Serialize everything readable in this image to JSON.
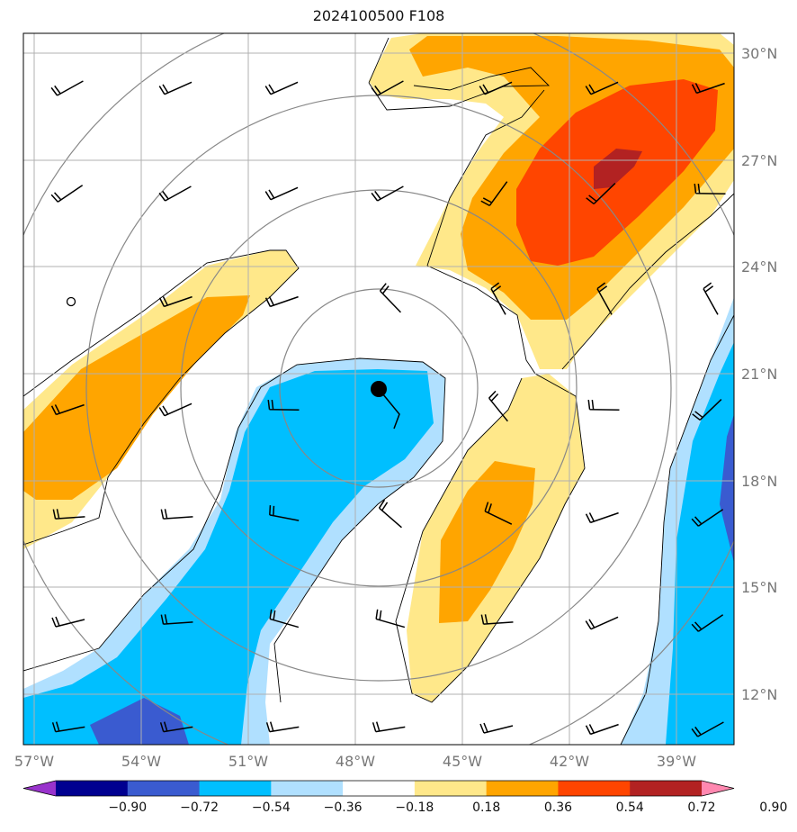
{
  "title": "2024100500 F108",
  "map": {
    "lon_ticks": [
      "57°W",
      "54°W",
      "51°W",
      "48°W",
      "45°W",
      "42°W",
      "39°W"
    ],
    "lat_ticks": [
      "30°N",
      "27°N",
      "24°N",
      "21°N",
      "18°N",
      "15°N",
      "12°N"
    ],
    "storm_center_marker": "filled-circle",
    "grid": true
  },
  "colorbar": {
    "labels": [
      "−0.90",
      "−0.72",
      "−0.54",
      "−0.36",
      "−0.18",
      "0.18",
      "0.36",
      "0.54",
      "0.72",
      "0.90"
    ],
    "colors": [
      "#9933cc",
      "#000090",
      "#3a5bd0",
      "#00bfff",
      "#b0e0ff",
      "#ffffff",
      "#ffe88a",
      "#ffa500",
      "#ff4500",
      "#b22222",
      "#ff88b0"
    ],
    "extend": "both"
  }
}
